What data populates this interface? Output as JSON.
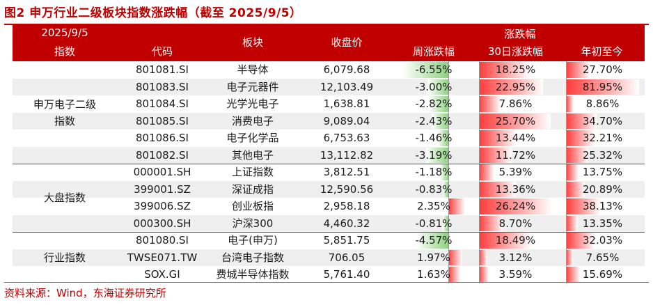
{
  "figure_title": "图2  申万行业二级板块指数涨跌幅（截至 2025/9/5）",
  "header": {
    "date": "2025/9/5",
    "index": "指数",
    "code": "代码",
    "sector": "板块",
    "close": "收盘价",
    "change_group": "涨跌幅",
    "week": "周涨跌幅",
    "day30": "30日涨跌幅",
    "ytd": "年初至今"
  },
  "groups": [
    {
      "label": "申万电子二级\n指数",
      "rows": 6
    },
    {
      "label": "大盘指数",
      "rows": 4
    },
    {
      "label": "行业指数",
      "rows": 3
    }
  ],
  "rows": [
    {
      "code": "801081.SI",
      "sector": "半导体",
      "close": "6,079.68",
      "week": "-6.55%",
      "day30": "18.25%",
      "ytd": "27.70%"
    },
    {
      "code": "801083.SI",
      "sector": "电子元器件",
      "close": "12,103.49",
      "week": "-3.00%",
      "day30": "22.95%",
      "ytd": "81.95%"
    },
    {
      "code": "801084.SI",
      "sector": "光学光电子",
      "close": "1,638.81",
      "week": "-2.82%",
      "day30": "7.86%",
      "ytd": "8.86%"
    },
    {
      "code": "801085.SI",
      "sector": "消费电子",
      "close": "9,089.04",
      "week": "-2.43%",
      "day30": "25.70%",
      "ytd": "34.70%"
    },
    {
      "code": "801086.SI",
      "sector": "电子化学品",
      "close": "6,753.63",
      "week": "-1.46%",
      "day30": "13.44%",
      "ytd": "32.21%"
    },
    {
      "code": "801082.SI",
      "sector": "其他电子",
      "close": "13,112.82",
      "week": "-3.19%",
      "day30": "11.72%",
      "ytd": "25.32%"
    },
    {
      "code": "000001.SH",
      "sector": "上证指数",
      "close": "3,812.51",
      "week": "-1.18%",
      "day30": "5.39%",
      "ytd": "13.75%"
    },
    {
      "code": "399001.SZ",
      "sector": "深证成指",
      "close": "12,590.56",
      "week": "-0.83%",
      "day30": "13.36%",
      "ytd": "20.89%"
    },
    {
      "code": "399006.SZ",
      "sector": "创业板指",
      "close": "2,958.18",
      "week": "2.35%",
      "day30": "26.24%",
      "ytd": "38.13%"
    },
    {
      "code": "000300.SH",
      "sector": "沪深300",
      "close": "4,460.32",
      "week": "-0.81%",
      "day30": "8.70%",
      "ytd": "13.35%"
    },
    {
      "code": "801080.SI",
      "sector": "电子(申万)",
      "close": "5,851.75",
      "week": "-4.57%",
      "day30": "18.49%",
      "ytd": "32.03%"
    },
    {
      "code": "TWSE071.TW",
      "sector": "台湾电子指数",
      "close": "706.05",
      "week": "1.97%",
      "day30": "3.12%",
      "ytd": "7.65%"
    },
    {
      "code": "SOX.GI",
      "sector": "费城半导体指数",
      "close": "5,761.40",
      "week": "1.63%",
      "day30": "3.59%",
      "ytd": "15.69%"
    }
  ],
  "colors": {
    "accent": "#c00000",
    "neg_bar": "#8dd17f",
    "pos_bar": "#ff3a3a",
    "alt_row": "#efefef"
  },
  "source": "资料来源：Wind，东海证券研究所"
}
